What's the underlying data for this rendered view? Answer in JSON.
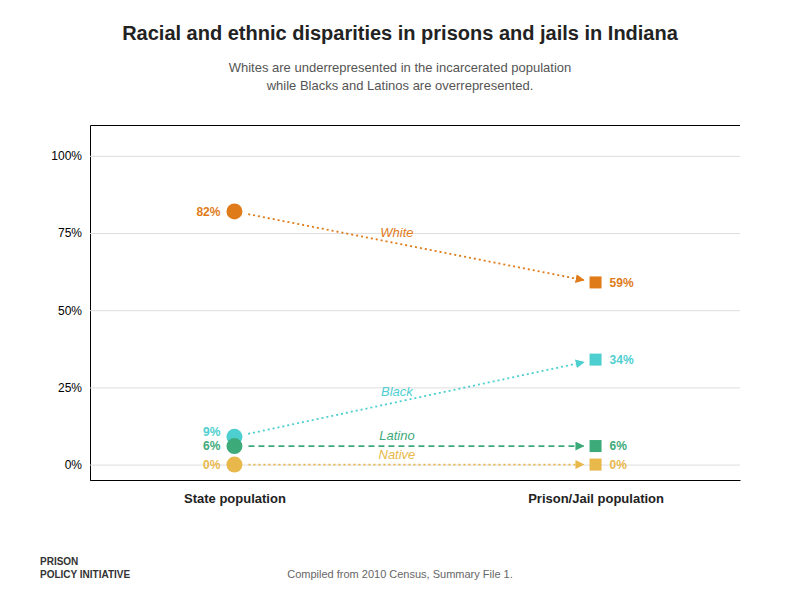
{
  "chart_data": {
    "type": "slope",
    "title": "Racial and ethnic disparities in prisons and jails in Indiana",
    "subtitle": "Whites are underrepresented in the incarcerated population\nwhile Blacks and Latinos are overrepresented.",
    "annotations": [
      "Compiled from 2010 Census, Summary File 1.",
      "PRISON\nPOLICY INITIATIVE"
    ],
    "categories": [
      "State population",
      "Prison/Jail population"
    ],
    "series": [
      {
        "name": "White",
        "color": "#e07b1a",
        "line_style": "dotted",
        "values": [
          82,
          59
        ],
        "value_labels": [
          "82%",
          "59%"
        ]
      },
      {
        "name": "Black",
        "color": "#4ecfcf",
        "line_style": "dotted",
        "values": [
          9,
          34
        ],
        "value_labels": [
          "9%",
          "34%"
        ]
      },
      {
        "name": "Latino",
        "color": "#3daa7a",
        "line_style": "dashed",
        "values": [
          6,
          6
        ],
        "value_labels": [
          "6%",
          "6%"
        ]
      },
      {
        "name": "Native",
        "color": "#e8b84b",
        "line_style": "dotted",
        "values": [
          0,
          0
        ],
        "value_labels": [
          "0%",
          "0%"
        ]
      }
    ],
    "ylim": [
      -5,
      110
    ],
    "yticks": [
      {
        "value": 0,
        "label": "0%"
      },
      {
        "value": 25,
        "label": "25%"
      },
      {
        "value": 50,
        "label": "50%"
      },
      {
        "value": 75,
        "label": "75%"
      },
      {
        "value": 100,
        "label": "100%"
      }
    ],
    "grid": true,
    "data_labels": true
  }
}
